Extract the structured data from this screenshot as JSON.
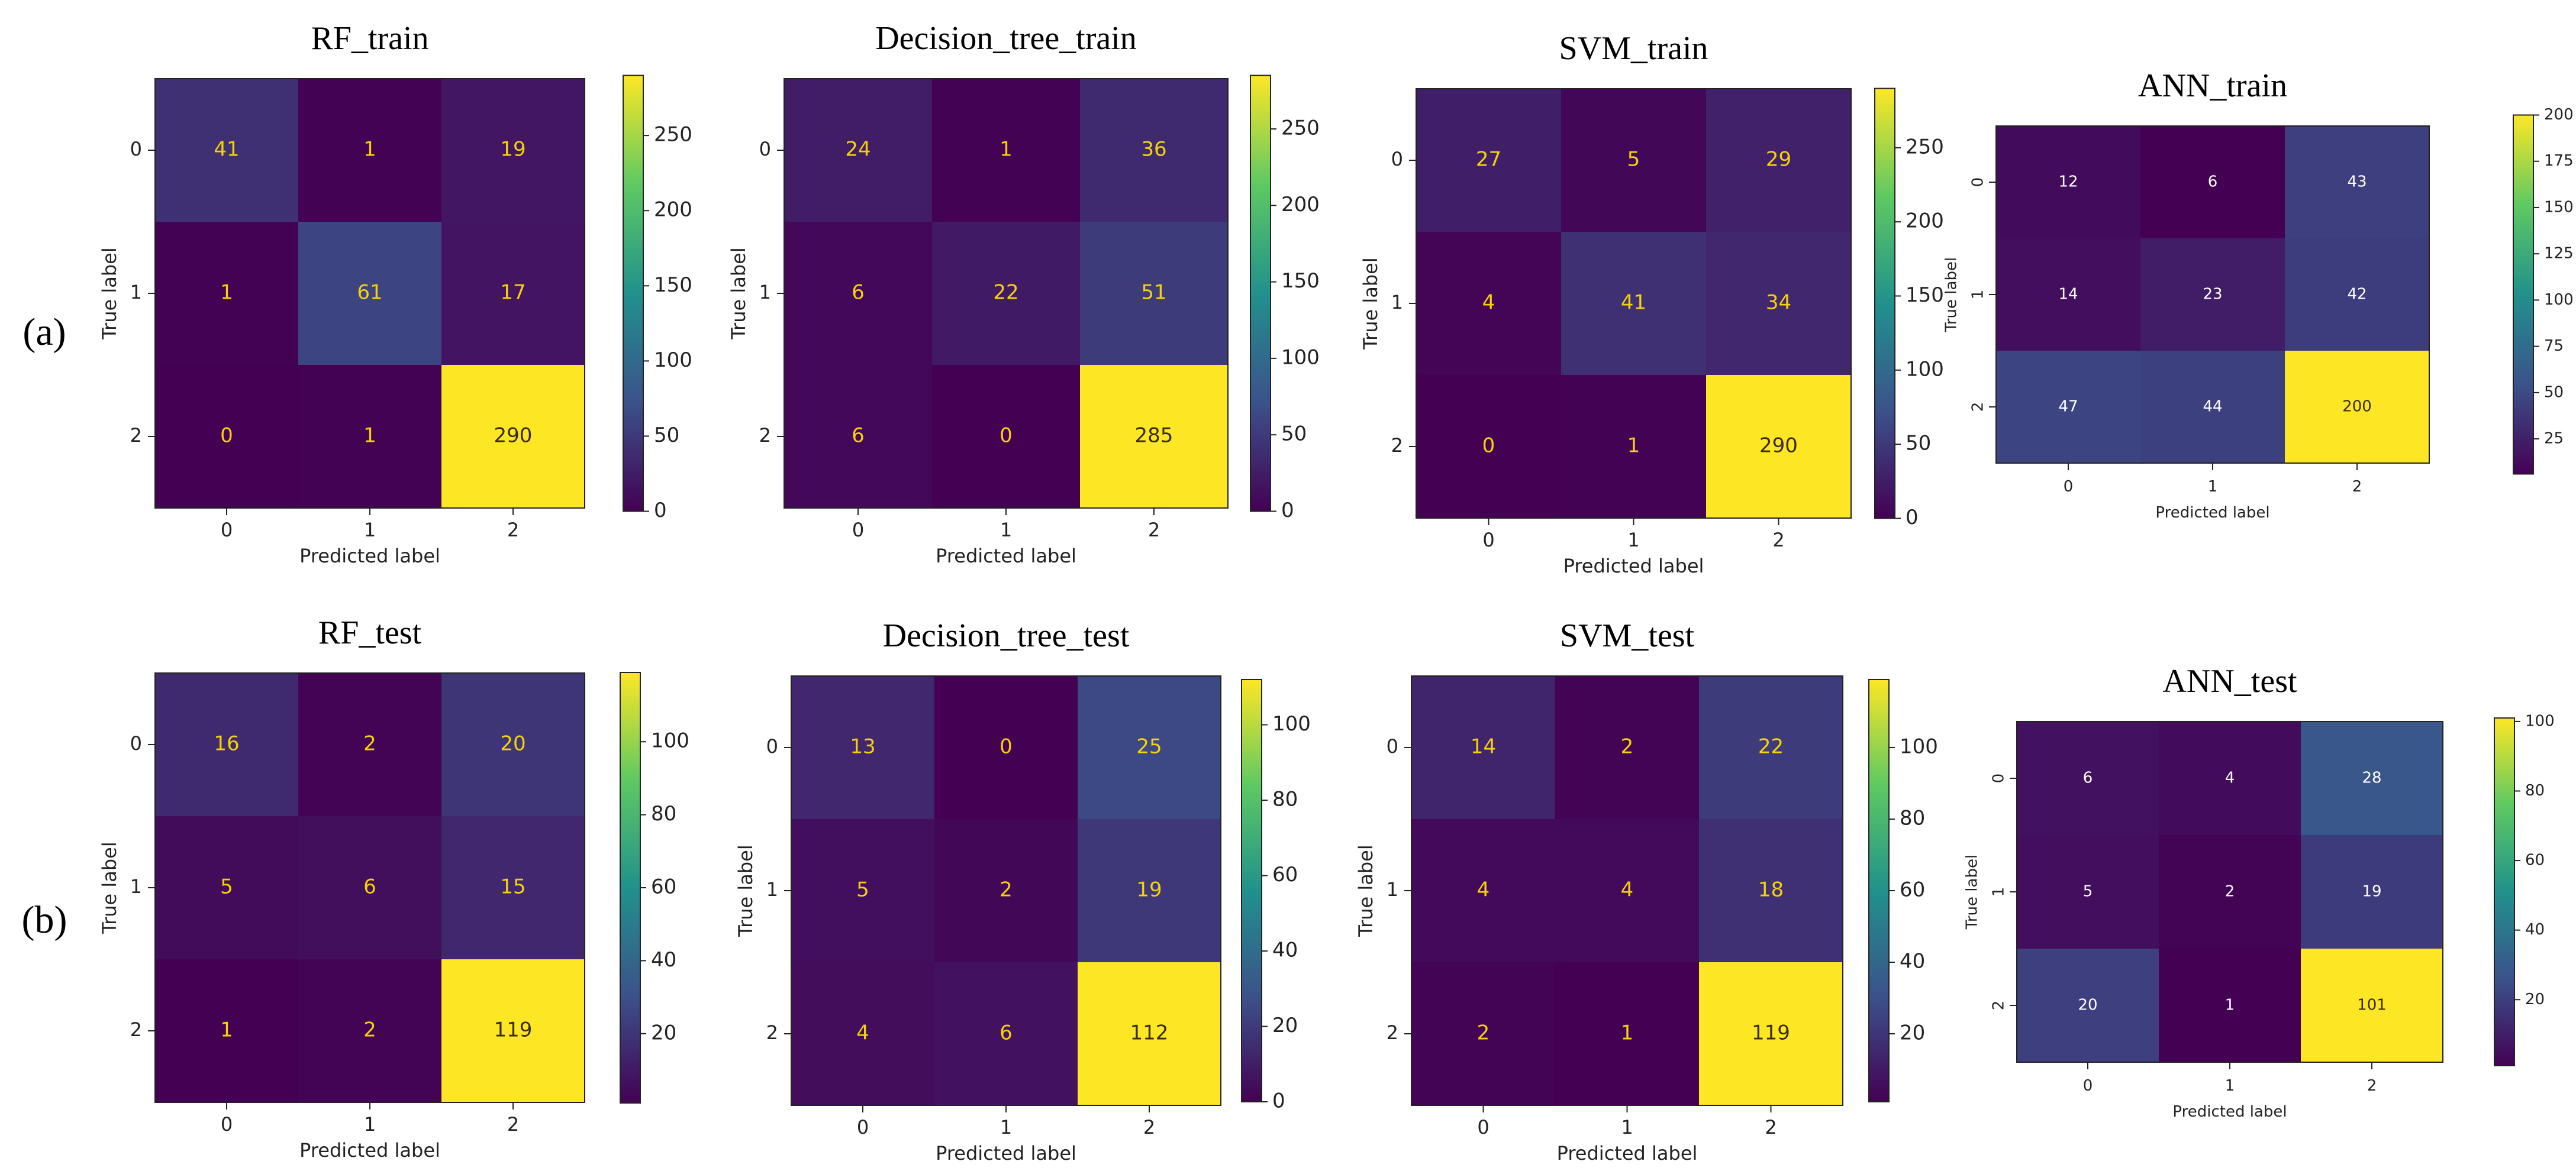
{
  "figure": {
    "row_labels": [
      "(a)",
      "(b)"
    ]
  },
  "chart_data": [
    {
      "type": "heatmap",
      "title": "RF_train",
      "xlabel": "Predicted label",
      "ylabel": "True label",
      "x_ticks": [
        "0",
        "1",
        "2"
      ],
      "y_ticks": [
        "0",
        "1",
        "2"
      ],
      "matrix": [
        [
          41,
          1,
          19
        ],
        [
          1,
          61,
          17
        ],
        [
          0,
          1,
          290
        ]
      ],
      "colorbar": {
        "range": [
          0,
          290
        ],
        "ticks": [
          0,
          50,
          100,
          150,
          200,
          250
        ]
      },
      "colormap": [
        "#440154",
        "#3b528b",
        "#21918c",
        "#5ec962",
        "#fde725"
      ]
    },
    {
      "type": "heatmap",
      "title": "Decision_tree_train",
      "xlabel": "Predicted label",
      "ylabel": "True label",
      "x_ticks": [
        "0",
        "1",
        "2"
      ],
      "y_ticks": [
        "0",
        "1",
        "2"
      ],
      "matrix": [
        [
          24,
          1,
          36
        ],
        [
          6,
          22,
          51
        ],
        [
          6,
          0,
          285
        ]
      ],
      "colorbar": {
        "range": [
          0,
          285
        ],
        "ticks": [
          0,
          50,
          100,
          150,
          200,
          250
        ]
      },
      "colormap": [
        "#440154",
        "#3b528b",
        "#21918c",
        "#5ec962",
        "#fde725"
      ]
    },
    {
      "type": "heatmap",
      "title": "SVM_train",
      "xlabel": "Predicted label",
      "ylabel": "True label",
      "x_ticks": [
        "0",
        "1",
        "2"
      ],
      "y_ticks": [
        "0",
        "1",
        "2"
      ],
      "matrix": [
        [
          27,
          5,
          29
        ],
        [
          4,
          41,
          34
        ],
        [
          0,
          1,
          290
        ]
      ],
      "colorbar": {
        "range": [
          0,
          290
        ],
        "ticks": [
          0,
          50,
          100,
          150,
          200,
          250
        ]
      },
      "colormap": [
        "#440154",
        "#3b528b",
        "#21918c",
        "#5ec962",
        "#fde725"
      ]
    },
    {
      "type": "heatmap",
      "title": "ANN_train",
      "xlabel": "Predicted label",
      "ylabel": "True label",
      "x_ticks": [
        "0",
        "1",
        "2"
      ],
      "y_ticks": [
        "0",
        "1",
        "2"
      ],
      "matrix": [
        [
          12,
          6,
          43
        ],
        [
          14,
          23,
          42
        ],
        [
          47,
          44,
          200
        ]
      ],
      "colorbar": {
        "range": [
          6,
          200
        ],
        "ticks": [
          25,
          50,
          75,
          100,
          125,
          150,
          175,
          200
        ]
      },
      "colormap": [
        "#440154",
        "#3b528b",
        "#21918c",
        "#5ec962",
        "#fde725"
      ]
    },
    {
      "type": "heatmap",
      "title": "RF_test",
      "xlabel": "Predicted label",
      "ylabel": "True label",
      "x_ticks": [
        "0",
        "1",
        "2"
      ],
      "y_ticks": [
        "0",
        "1",
        "2"
      ],
      "matrix": [
        [
          16,
          2,
          20
        ],
        [
          5,
          6,
          15
        ],
        [
          1,
          2,
          119
        ]
      ],
      "colorbar": {
        "range": [
          1,
          119
        ],
        "ticks": [
          20,
          40,
          60,
          80,
          100
        ]
      },
      "colormap": [
        "#440154",
        "#3b528b",
        "#21918c",
        "#5ec962",
        "#fde725"
      ]
    },
    {
      "type": "heatmap",
      "title": "Decision_tree_test",
      "xlabel": "Predicted label",
      "ylabel": "True label",
      "x_ticks": [
        "0",
        "1",
        "2"
      ],
      "y_ticks": [
        "0",
        "1",
        "2"
      ],
      "matrix": [
        [
          13,
          0,
          25
        ],
        [
          5,
          2,
          19
        ],
        [
          4,
          6,
          112
        ]
      ],
      "colorbar": {
        "range": [
          0,
          112
        ],
        "ticks": [
          0,
          20,
          40,
          60,
          80,
          100
        ]
      },
      "colormap": [
        "#440154",
        "#3b528b",
        "#21918c",
        "#5ec962",
        "#fde725"
      ]
    },
    {
      "type": "heatmap",
      "title": "SVM_test",
      "xlabel": "Predicted label",
      "ylabel": "True label",
      "x_ticks": [
        "0",
        "1",
        "2"
      ],
      "y_ticks": [
        "0",
        "1",
        "2"
      ],
      "matrix": [
        [
          14,
          2,
          22
        ],
        [
          4,
          4,
          18
        ],
        [
          2,
          1,
          119
        ]
      ],
      "colorbar": {
        "range": [
          1,
          119
        ],
        "ticks": [
          20,
          40,
          60,
          80,
          100
        ]
      },
      "colormap": [
        "#440154",
        "#3b528b",
        "#21918c",
        "#5ec962",
        "#fde725"
      ]
    },
    {
      "type": "heatmap",
      "title": "ANN_test",
      "xlabel": "Predicted label",
      "ylabel": "True label",
      "x_ticks": [
        "0",
        "1",
        "2"
      ],
      "y_ticks": [
        "0",
        "1",
        "2"
      ],
      "matrix": [
        [
          6,
          4,
          28
        ],
        [
          5,
          2,
          19
        ],
        [
          20,
          1,
          101
        ]
      ],
      "colorbar": {
        "range": [
          1,
          101
        ],
        "ticks": [
          20,
          40,
          60,
          80,
          100
        ]
      },
      "colormap": [
        "#440154",
        "#3b528b",
        "#21918c",
        "#5ec962",
        "#fde725"
      ]
    }
  ]
}
